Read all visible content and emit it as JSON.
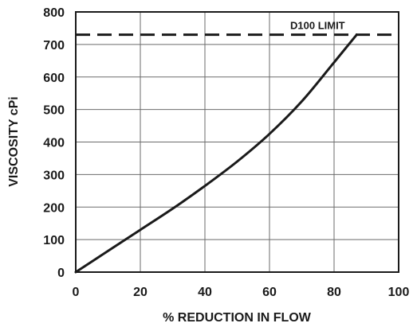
{
  "chart_data": {
    "type": "line",
    "title": "",
    "xlabel": "% REDUCTION IN FLOW",
    "ylabel": "VISCOSITY cPi",
    "xlim": [
      0,
      100
    ],
    "ylim": [
      0,
      800
    ],
    "xticks": [
      0,
      20,
      40,
      60,
      80,
      100
    ],
    "yticks": [
      0,
      100,
      200,
      300,
      400,
      500,
      600,
      700,
      800
    ],
    "grid": true,
    "legend": "none",
    "line_color": "#1a1a1a",
    "series": [
      {
        "x": [
          0,
          10,
          20,
          30,
          40,
          50,
          60,
          70,
          80,
          87
        ],
        "y": [
          0,
          65,
          130,
          195,
          265,
          340,
          425,
          525,
          645,
          730
        ]
      }
    ],
    "reference_lines": [
      {
        "axis": "y",
        "value": 730,
        "style": "dashed",
        "label": "D100 LIMIT"
      }
    ]
  }
}
